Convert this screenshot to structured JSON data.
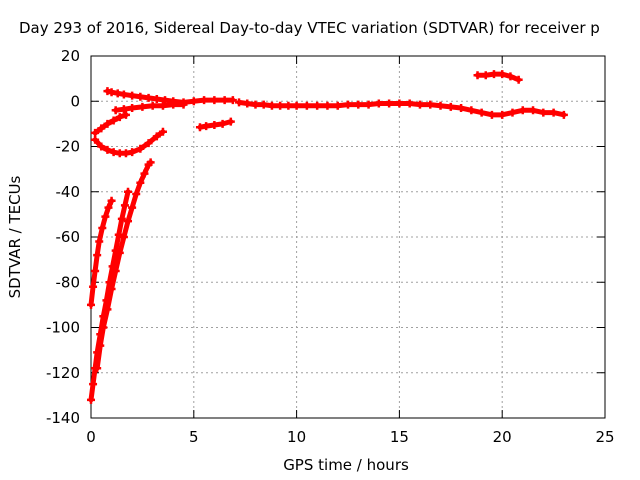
{
  "chart_data": {
    "type": "scatter",
    "title": "Day 293 of 2016, Sidereal Day-to-day VTEC variation (SDTVAR) for receiver p",
    "xlabel": "GPS time / hours",
    "ylabel": "SDTVAR / TECUs",
    "xlim": [
      0,
      25
    ],
    "ylim": [
      -140,
      20
    ],
    "xticks": [
      0,
      5,
      10,
      15,
      20,
      25
    ],
    "yticks": [
      -140,
      -120,
      -100,
      -80,
      -60,
      -40,
      -20,
      0,
      20
    ],
    "grid": true,
    "marker": "+",
    "series_color": "#ff0000",
    "series": [
      {
        "x": [
          0.8,
          1.0,
          1.3,
          1.6,
          2.0,
          2.4,
          2.8,
          3.2,
          3.6,
          4.0,
          4.5,
          5.0,
          5.5,
          6.0,
          6.5,
          6.9
        ],
        "y": [
          4.5,
          4,
          3.5,
          3,
          2.5,
          2,
          1.5,
          1,
          0.5,
          0,
          -0.5,
          0,
          0.5,
          0.5,
          0.5,
          0.5
        ]
      },
      {
        "x": [
          7.2,
          7.6,
          8.0,
          8.4,
          8.8,
          9.2,
          9.6,
          10.0,
          10.5,
          11.0,
          11.5,
          12.0,
          12.5,
          13.0,
          13.5,
          14.0,
          14.5,
          15.0,
          15.5,
          16.0,
          16.5,
          17.0,
          17.5,
          18.0,
          18.5,
          19.0,
          19.5,
          20.0,
          20.5,
          21.0,
          21.5,
          22.0,
          22.5,
          23.0
        ],
        "y": [
          -0.5,
          -1,
          -1.5,
          -1.5,
          -2,
          -2,
          -2,
          -2,
          -2,
          -2,
          -2,
          -2,
          -1.5,
          -1.5,
          -1.5,
          -1,
          -1,
          -1,
          -1,
          -1.5,
          -1.5,
          -2,
          -2.5,
          -3,
          -4,
          -5,
          -6,
          -6,
          -5,
          -4,
          -4,
          -5,
          -5,
          -6
        ]
      },
      {
        "x": [
          1.2,
          1.6,
          2.0,
          2.5,
          3.0,
          3.5,
          4.0,
          4.5
        ],
        "y": [
          -4,
          -3.5,
          -3,
          -2.5,
          -2,
          -2,
          -1.5,
          -1.5
        ]
      },
      {
        "x": [
          18.8,
          19.2,
          19.6,
          20.0,
          20.4,
          20.8
        ],
        "y": [
          11.5,
          11.5,
          12,
          12,
          11,
          9.5
        ]
      },
      {
        "x": [
          5.3,
          5.6,
          6.0,
          6.4,
          6.8
        ],
        "y": [
          -11.5,
          -11,
          -10.5,
          -10,
          -9
        ]
      },
      {
        "x": [
          0.2,
          0.5,
          0.8,
          1.1,
          1.4,
          1.7
        ],
        "y": [
          -14,
          -12,
          -10,
          -8.5,
          -7,
          -6
        ]
      },
      {
        "x": [
          0.2,
          0.5,
          0.8,
          1.1,
          1.4,
          1.7,
          2.0,
          2.4,
          2.8,
          3.2,
          3.5
        ],
        "y": [
          -17,
          -20,
          -21.5,
          -22.5,
          -23,
          -23,
          -22.5,
          -21,
          -18.5,
          -15.5,
          -13.5
        ]
      },
      {
        "x": [
          0.0,
          0.1,
          0.2,
          0.3,
          0.4,
          0.55,
          0.7,
          0.85,
          1.0
        ],
        "y": [
          -90,
          -82,
          -75,
          -68,
          -62,
          -56,
          -51,
          -47,
          -44
        ]
      },
      {
        "x": [
          0.0,
          0.1,
          0.2,
          0.3,
          0.45,
          0.6,
          0.75,
          0.9,
          1.05,
          1.2,
          1.35,
          1.5,
          1.65,
          1.8
        ],
        "y": [
          -132,
          -125,
          -118,
          -111,
          -103,
          -95,
          -88,
          -80,
          -73,
          -66,
          -59,
          -52,
          -46,
          -40
        ]
      },
      {
        "x": [
          0.3,
          0.45,
          0.6,
          0.8,
          1.0,
          1.2,
          1.4,
          1.6,
          1.8,
          2.0,
          2.2,
          2.4,
          2.6,
          2.8,
          2.9
        ],
        "y": [
          -118,
          -108,
          -100,
          -92,
          -83,
          -75,
          -67,
          -60,
          -53,
          -47,
          -41,
          -36,
          -32,
          -28,
          -27
        ]
      }
    ]
  }
}
